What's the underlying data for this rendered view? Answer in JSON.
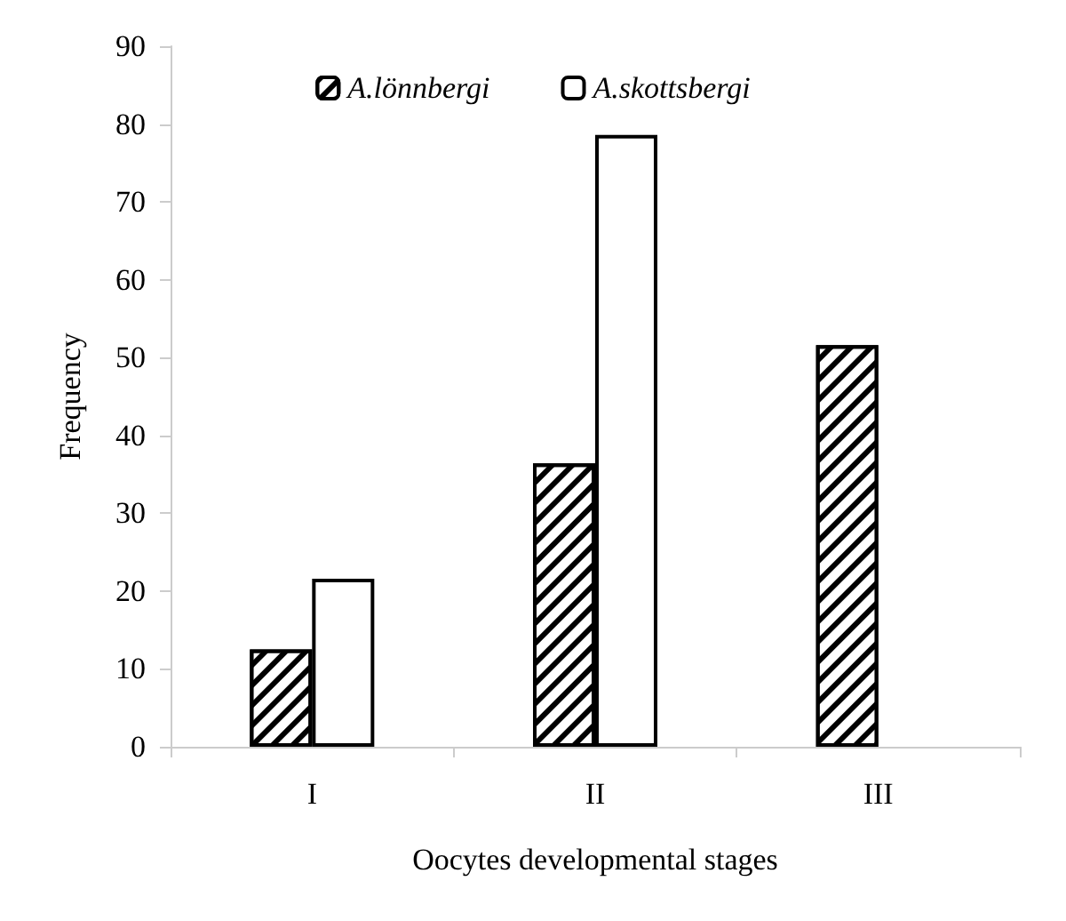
{
  "chart_data": {
    "type": "bar",
    "xlabel": "Oocytes developmental stages",
    "ylabel": "Frequency",
    "categories": [
      "I",
      "II",
      "III"
    ],
    "series": [
      {
        "name": "A.lönnbergi",
        "color": "#ffffff",
        "values": [
          12.5,
          36.4,
          51.6
        ]
      },
      {
        "name": "A.skottsbergi",
        "color": "#ffffff",
        "values": [
          21.6,
          78.6,
          null
        ]
      }
    ],
    "ylim": [
      0,
      90
    ],
    "yticks": [
      0,
      10,
      20,
      30,
      40,
      50,
      60,
      70,
      80,
      90
    ],
    "grid": false,
    "legend": "top"
  }
}
